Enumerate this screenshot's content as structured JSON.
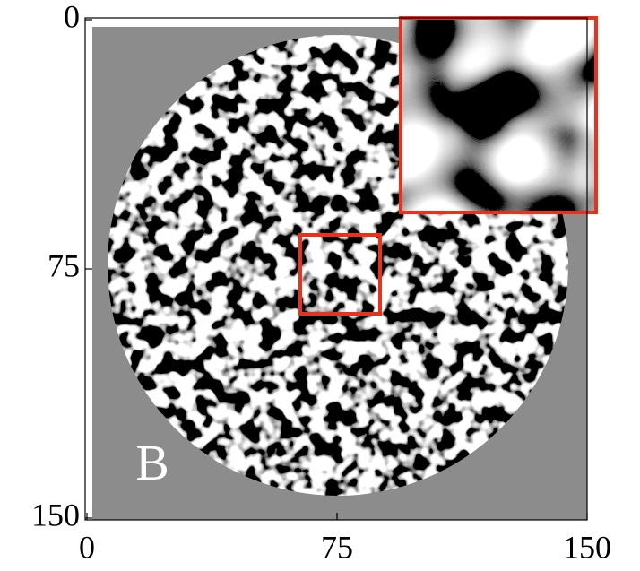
{
  "chart_data": {
    "type": "image",
    "annotation": "B",
    "xlim": [
      0,
      150
    ],
    "ylim": [
      0,
      150
    ],
    "y_inverted": true,
    "xticks": [
      0,
      75,
      150
    ],
    "yticks": [
      0,
      75,
      150
    ]
  }
}
